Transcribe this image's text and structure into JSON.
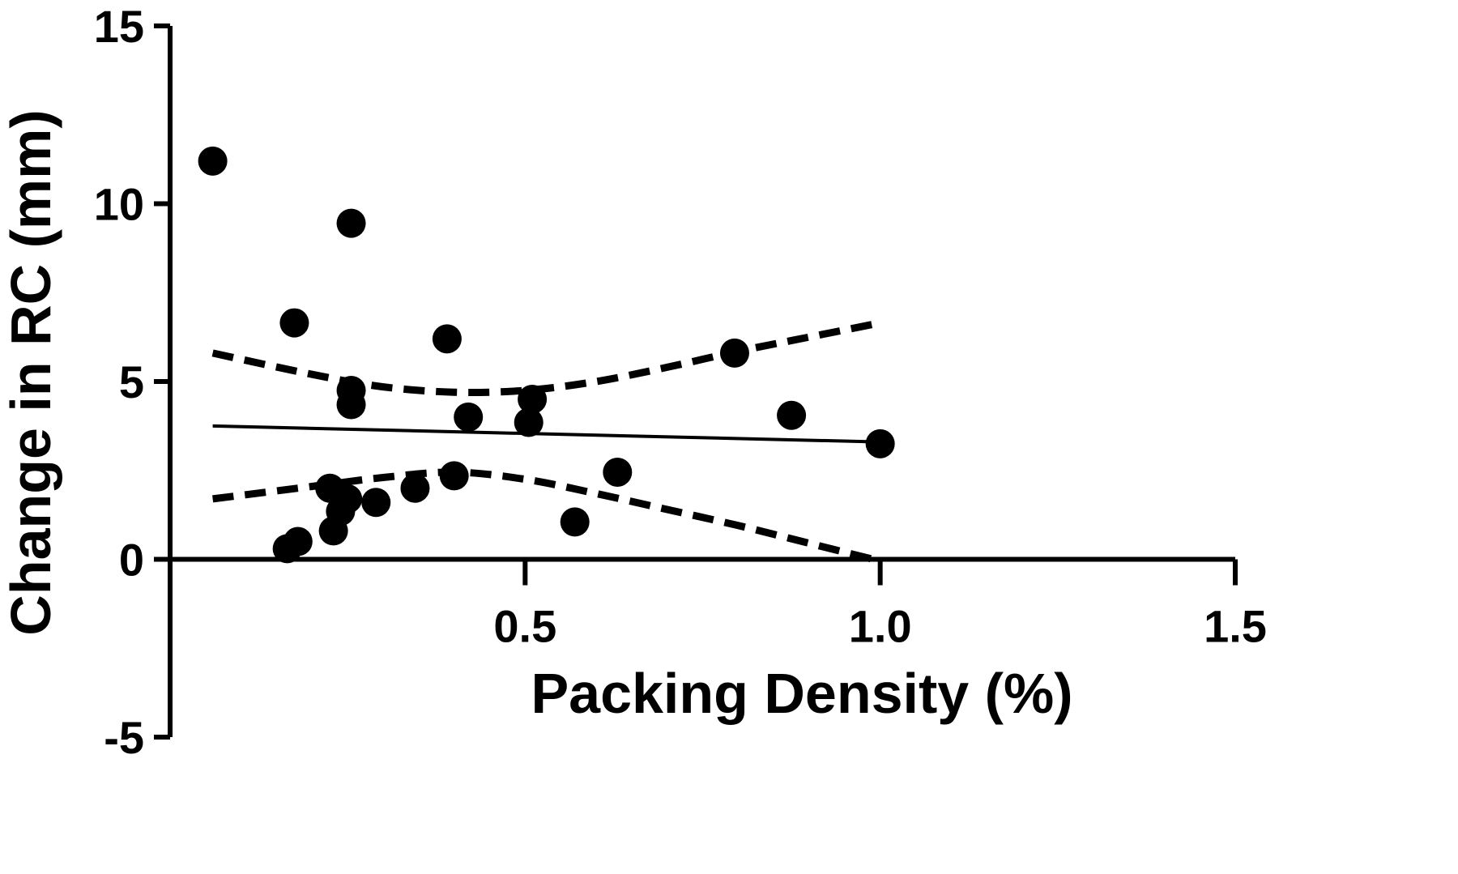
{
  "chart_data": {
    "type": "scatter",
    "xlabel": "Packing Density (%)",
    "ylabel": "Change in RC (mm)",
    "xlim": [
      0,
      1.5
    ],
    "ylim": [
      -5,
      15
    ],
    "x_ticks": [
      0.5,
      1.0,
      1.5
    ],
    "x_tick_labels": [
      "0.5",
      "1.0",
      "1.5"
    ],
    "y_ticks": [
      -5,
      0,
      5,
      10,
      15
    ],
    "y_tick_labels": [
      "-5",
      "0",
      "5",
      "10",
      "15"
    ],
    "grid": false,
    "legend": "none",
    "colors": {
      "points": "#000000",
      "lines": "#000000",
      "axes": "#000000"
    },
    "series": [
      {
        "values": [
          {
            "x": 0.06,
            "y": 11.2
          },
          {
            "x": 0.175,
            "y": 6.65
          },
          {
            "x": 0.255,
            "y": 9.45
          },
          {
            "x": 0.255,
            "y": 4.75
          },
          {
            "x": 0.255,
            "y": 4.35
          },
          {
            "x": 0.39,
            "y": 6.2
          },
          {
            "x": 0.42,
            "y": 4.0
          },
          {
            "x": 0.51,
            "y": 4.5
          },
          {
            "x": 0.505,
            "y": 3.85
          },
          {
            "x": 0.875,
            "y": 4.05
          },
          {
            "x": 0.795,
            "y": 5.8
          },
          {
            "x": 1.0,
            "y": 3.25
          },
          {
            "x": 0.225,
            "y": 2.0
          },
          {
            "x": 0.25,
            "y": 1.7
          },
          {
            "x": 0.24,
            "y": 1.35
          },
          {
            "x": 0.29,
            "y": 1.6
          },
          {
            "x": 0.345,
            "y": 2.0
          },
          {
            "x": 0.4,
            "y": 2.35
          },
          {
            "x": 0.63,
            "y": 2.45
          },
          {
            "x": 0.57,
            "y": 1.05
          },
          {
            "x": 0.23,
            "y": 0.8
          },
          {
            "x": 0.18,
            "y": 0.5
          },
          {
            "x": 0.165,
            "y": 0.3
          }
        ]
      }
    ],
    "fit_line": {
      "x": [
        0.06,
        1.0
      ],
      "y": [
        3.75,
        3.3
      ]
    },
    "confidence_band_upper": {
      "x": [
        0.06,
        0.2,
        0.3,
        0.4,
        0.5,
        0.6,
        0.7,
        0.8,
        0.9,
        1.0
      ],
      "y": [
        5.8,
        5.2,
        4.85,
        4.7,
        4.75,
        5.0,
        5.4,
        5.85,
        6.25,
        6.65
      ]
    },
    "confidence_band_lower": {
      "x": [
        0.06,
        0.2,
        0.3,
        0.4,
        0.5,
        0.6,
        0.7,
        0.8,
        0.9,
        1.0
      ],
      "y": [
        1.7,
        2.05,
        2.3,
        2.45,
        2.25,
        1.85,
        1.4,
        0.95,
        0.45,
        -0.05
      ]
    }
  }
}
